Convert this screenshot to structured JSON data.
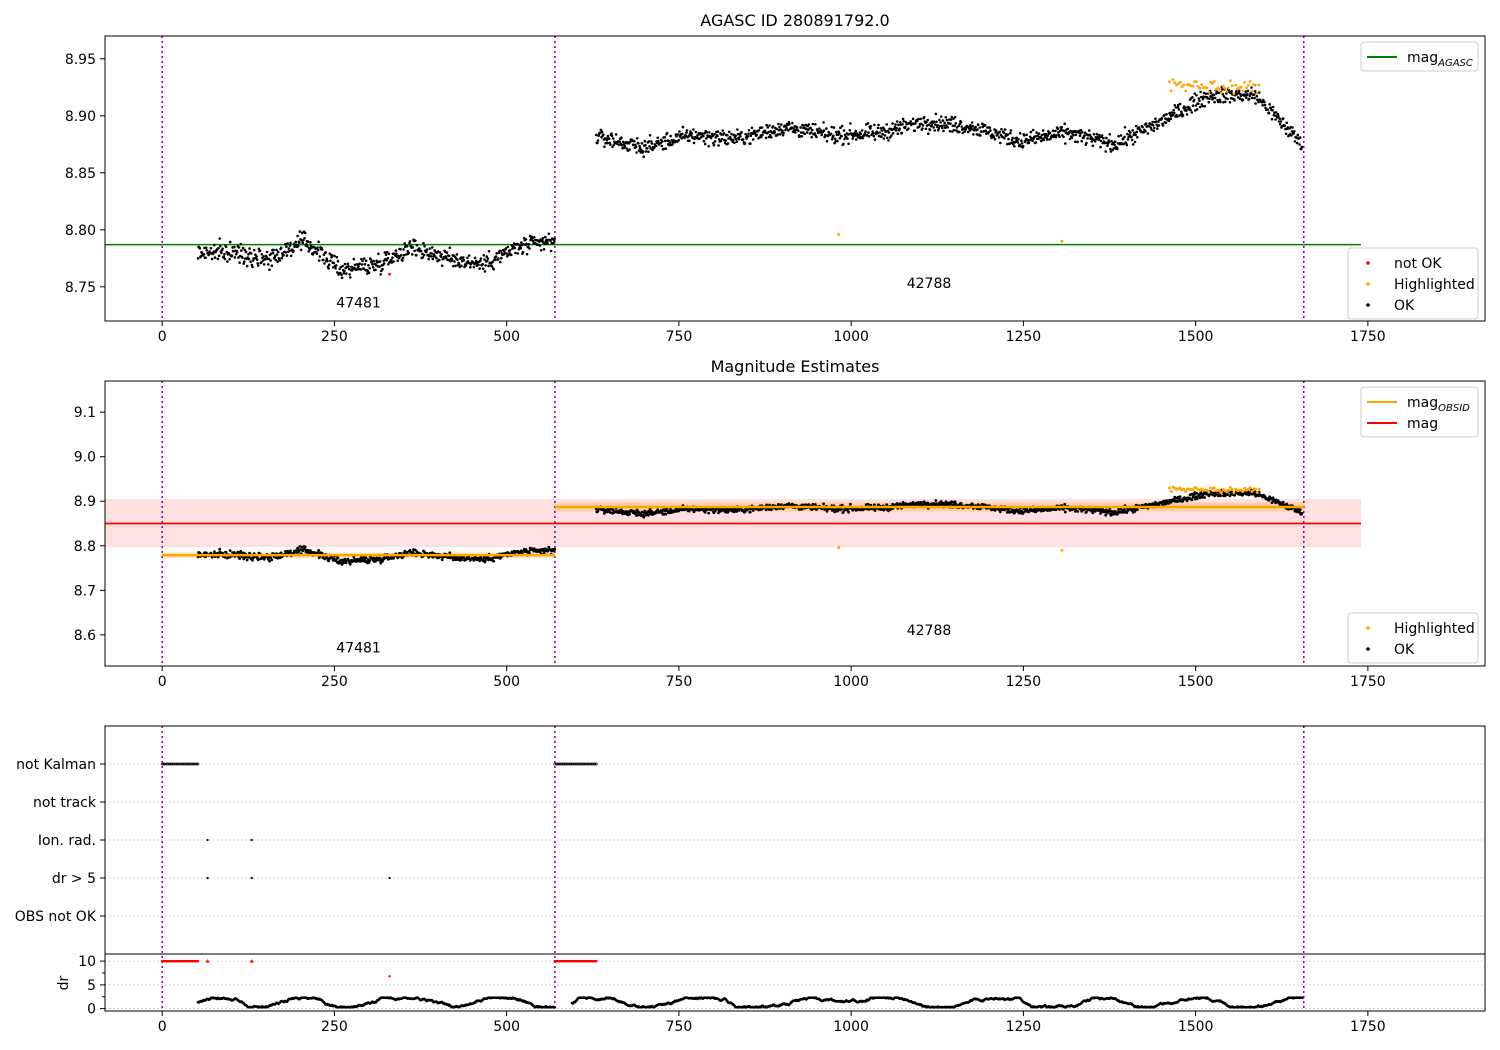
{
  "chart_data": [
    {
      "type": "scatter",
      "title": "AGASC ID 280891792.0",
      "xlim": [
        -83,
        1920
      ],
      "ylim": [
        8.72,
        8.97
      ],
      "xticks": [
        0,
        250,
        500,
        750,
        1000,
        1250,
        1500,
        1750
      ],
      "yticks": [
        8.75,
        8.8,
        8.85,
        8.9,
        8.95
      ],
      "ytick_labels": [
        "8.75",
        "8.80",
        "8.85",
        "8.90",
        "8.95"
      ],
      "grid": false,
      "obsid_boundaries": [
        0,
        570,
        1657
      ],
      "obsid_labels": [
        {
          "text": "47481",
          "x": 285,
          "y": 8.732
        },
        {
          "text": "42788",
          "x": 1113,
          "y": 8.749
        }
      ],
      "lines": [
        {
          "name": "mag_AGASC",
          "color": "#008000",
          "x": [
            -83,
            1740
          ],
          "y": [
            8.787,
            8.787
          ]
        }
      ],
      "segments": [
        {
          "x0": 52,
          "x1": 570,
          "base": [
            8.78,
            8.78,
            8.775,
            8.79,
            8.765,
            8.77,
            8.785,
            8.775,
            8.77,
            8.785,
            8.79
          ],
          "noise": 0.008
        },
        {
          "x0": 630,
          "x1": 1655,
          "base": [
            8.882,
            8.872,
            8.883,
            8.88,
            8.89,
            8.883,
            8.885,
            8.895,
            8.89,
            8.878,
            8.885,
            8.875,
            8.895,
            8.918,
            8.918,
            8.875
          ],
          "noise": 0.007
        }
      ],
      "highlighted": [
        {
          "x": 982,
          "y": 8.796
        },
        {
          "x": 1306,
          "y": 8.79
        },
        {
          "x0": 1462,
          "x1": 1592,
          "base": 8.926,
          "noise": 0.006
        }
      ],
      "not_ok": [
        {
          "x": 330,
          "y": 8.761
        }
      ],
      "legend_top": [
        {
          "label": "mag",
          "sub": "AGASC",
          "color": "#008000",
          "kind": "line"
        }
      ],
      "legend_bottom": [
        {
          "label": "not OK",
          "color": "#ff0000",
          "kind": "dot"
        },
        {
          "label": "Highlighted",
          "color": "#ffa500",
          "kind": "dot"
        },
        {
          "label": "OK",
          "color": "#000000",
          "kind": "dot"
        }
      ]
    },
    {
      "type": "scatter",
      "title": "Magnitude Estimates",
      "xlim": [
        -83,
        1920
      ],
      "ylim": [
        8.53,
        9.17
      ],
      "xticks": [
        0,
        250,
        500,
        750,
        1000,
        1250,
        1500,
        1750
      ],
      "yticks": [
        8.6,
        8.7,
        8.8,
        8.9,
        9.0,
        9.1
      ],
      "ytick_labels": [
        "8.6",
        "8.7",
        "8.8",
        "8.9",
        "9.0",
        "9.1"
      ],
      "grid": false,
      "obsid_boundaries": [
        0,
        570,
        1657
      ],
      "obsid_labels": [
        {
          "text": "47481",
          "x": 285,
          "y": 8.56
        },
        {
          "text": "42788",
          "x": 1113,
          "y": 8.6
        }
      ],
      "mag_line": {
        "name": "mag",
        "color": "#ff0000",
        "x": [
          -83,
          1740
        ],
        "y": 8.85,
        "band": [
          8.797,
          8.905
        ]
      },
      "obsid_mag": [
        {
          "x0": 0,
          "x1": 570,
          "y": 8.779,
          "band": [
            8.773,
            8.785
          ]
        },
        {
          "x0": 570,
          "x1": 1657,
          "y": 8.887,
          "band": [
            8.877,
            8.897
          ]
        }
      ],
      "legend_top": [
        {
          "label": "mag",
          "sub": "OBSID",
          "color": "#ffa500",
          "kind": "line"
        },
        {
          "label": "mag",
          "sub": "",
          "color": "#ff0000",
          "kind": "line"
        }
      ],
      "legend_bottom": [
        {
          "label": "Highlighted",
          "color": "#ffa500",
          "kind": "dot"
        },
        {
          "label": "OK",
          "color": "#000000",
          "kind": "dot"
        }
      ]
    },
    {
      "type": "scatter",
      "title": "",
      "xlim": [
        -83,
        1920
      ],
      "xticks": [
        0,
        250,
        500,
        750,
        1000,
        1250,
        1500,
        1750
      ],
      "grid": true,
      "obsid_boundaries": [
        0,
        570,
        1657
      ],
      "flag_rows": [
        "not Kalman",
        "not track",
        "Ion. rad.",
        "dr > 5",
        "OBS not OK"
      ],
      "flags": {
        "not Kalman": [
          [
            0,
            52
          ],
          [
            570,
            630
          ]
        ],
        "not track": [],
        "Ion. rad.": [
          66,
          130
        ],
        "dr > 5": [
          66,
          130,
          330
        ],
        "OBS not OK": []
      },
      "dr": {
        "ylabel": "dr",
        "ylim": [
          -0.5,
          11.5
        ],
        "yticks": [
          0,
          5,
          10
        ],
        "ytick_labels": [
          "0",
          "5",
          "10"
        ],
        "clipped_value": 10,
        "clipped_ranges": [
          [
            0,
            52
          ],
          [
            570,
            630
          ]
        ],
        "clipped_points": [
          66,
          130
        ],
        "outlier": {
          "x": 330,
          "y": 6.8
        },
        "segments": [
          [
            52,
            570
          ],
          [
            595,
            1655
          ]
        ],
        "typical_range": [
          0.3,
          2.3
        ]
      }
    }
  ]
}
